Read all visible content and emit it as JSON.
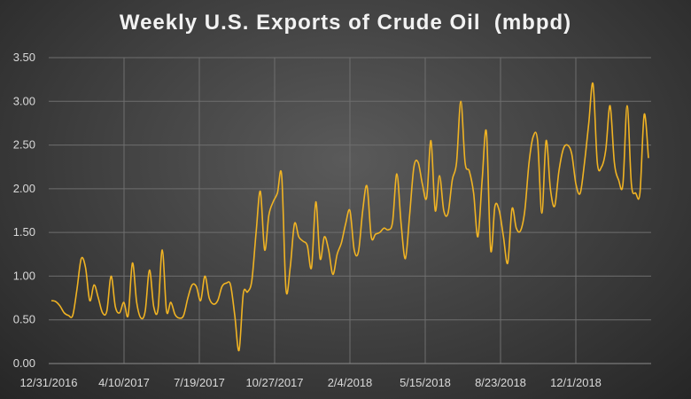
{
  "chart_data": {
    "type": "line",
    "title": "Weekly U.S. Exports of Crude Oil  (mbpd)",
    "xlabel": "",
    "ylabel": "",
    "ylim": [
      0,
      3.5
    ],
    "yticks": [
      "0.00",
      "0.50",
      "1.00",
      "1.50",
      "2.00",
      "2.50",
      "3.00",
      "3.50"
    ],
    "xticks": [
      "12/31/2016",
      "4/10/2017",
      "7/19/2017",
      "10/27/2017",
      "2/4/2018",
      "5/15/2018",
      "8/23/2018",
      "12/1/2018"
    ],
    "grid": true,
    "legend": "none",
    "line_color": "#f0b323",
    "series": [
      {
        "values": [
          0.72,
          0.71,
          0.66,
          0.58,
          0.55,
          0.55,
          0.85,
          1.2,
          1.1,
          0.72,
          0.9,
          0.75,
          0.58,
          0.6,
          1.0,
          0.65,
          0.58,
          0.7,
          0.55,
          1.15,
          0.7,
          0.52,
          0.6,
          1.07,
          0.65,
          0.62,
          1.3,
          0.6,
          0.7,
          0.56,
          0.52,
          0.55,
          0.75,
          0.9,
          0.88,
          0.72,
          1.0,
          0.75,
          0.68,
          0.72,
          0.88,
          0.92,
          0.9,
          0.55,
          0.15,
          0.8,
          0.82,
          0.95,
          1.5,
          1.97,
          1.3,
          1.7,
          1.85,
          1.95,
          2.15,
          0.85,
          1.1,
          1.6,
          1.45,
          1.4,
          1.35,
          1.1,
          1.85,
          1.2,
          1.45,
          1.3,
          1.02,
          1.25,
          1.38,
          1.6,
          1.75,
          1.3,
          1.28,
          1.75,
          2.03,
          1.45,
          1.48,
          1.5,
          1.55,
          1.53,
          1.62,
          2.17,
          1.6,
          1.2,
          1.7,
          2.25,
          2.3,
          2.05,
          1.9,
          2.55,
          1.75,
          2.15,
          1.75,
          1.72,
          2.1,
          2.3,
          3.0,
          2.3,
          2.2,
          1.95,
          1.45,
          2.1,
          2.65,
          1.3,
          1.8,
          1.75,
          1.45,
          1.15,
          1.77,
          1.55,
          1.52,
          1.75,
          2.3,
          2.6,
          2.55,
          1.72,
          2.55,
          2.0,
          1.8,
          2.2,
          2.45,
          2.5,
          2.4,
          2.05,
          1.95,
          2.3,
          2.75,
          3.2,
          2.3,
          2.25,
          2.45,
          2.95,
          2.3,
          2.1,
          2.05,
          2.95,
          2.05,
          1.95,
          1.95,
          2.85,
          2.35
        ]
      }
    ]
  }
}
